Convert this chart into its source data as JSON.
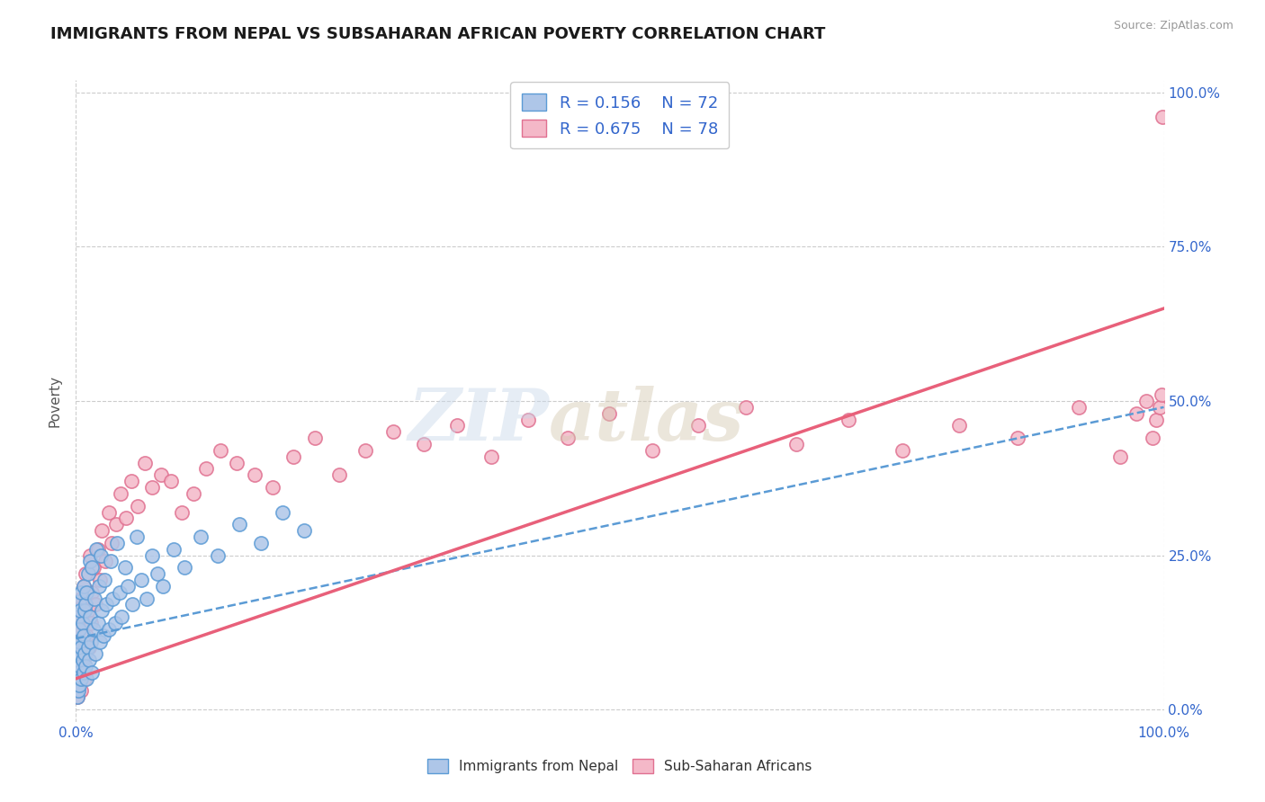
{
  "title": "IMMIGRANTS FROM NEPAL VS SUBSAHARAN AFRICAN POVERTY CORRELATION CHART",
  "source": "Source: ZipAtlas.com",
  "ylabel": "Poverty",
  "xlim": [
    0,
    1
  ],
  "ylim": [
    -0.02,
    1.02
  ],
  "ytick_values": [
    0.0,
    0.25,
    0.5,
    0.75,
    1.0
  ],
  "ytick_labels": [
    "0.0%",
    "25.0%",
    "50.0%",
    "75.0%",
    "100.0%"
  ],
  "xtick_values": [
    0.0,
    1.0
  ],
  "xtick_labels": [
    "0.0%",
    "100.0%"
  ],
  "background_color": "#ffffff",
  "grid_color": "#cccccc",
  "nepal_color": "#aec6e8",
  "nepal_edge_color": "#5b9bd5",
  "subafr_color": "#f4b8c8",
  "subafr_edge_color": "#e07090",
  "nepal_line_color": "#5b9bd5",
  "subafr_line_color": "#e8607a",
  "nepal_R": "0.156",
  "nepal_N": "72",
  "subafr_R": "0.675",
  "subafr_N": "78",
  "legend_label_nepal": "Immigrants from Nepal",
  "legend_label_subafr": "Sub-Saharan Africans",
  "nepal_scatter_x": [
    0.001,
    0.001,
    0.001,
    0.002,
    0.002,
    0.002,
    0.002,
    0.003,
    0.003,
    0.003,
    0.003,
    0.004,
    0.004,
    0.004,
    0.005,
    0.005,
    0.005,
    0.006,
    0.006,
    0.007,
    0.007,
    0.007,
    0.008,
    0.008,
    0.009,
    0.009,
    0.01,
    0.01,
    0.011,
    0.011,
    0.012,
    0.013,
    0.013,
    0.014,
    0.015,
    0.015,
    0.016,
    0.017,
    0.018,
    0.019,
    0.02,
    0.021,
    0.022,
    0.023,
    0.024,
    0.025,
    0.026,
    0.028,
    0.03,
    0.032,
    0.034,
    0.036,
    0.038,
    0.04,
    0.042,
    0.045,
    0.048,
    0.052,
    0.056,
    0.06,
    0.065,
    0.07,
    0.075,
    0.08,
    0.09,
    0.1,
    0.115,
    0.13,
    0.15,
    0.17,
    0.19,
    0.21
  ],
  "nepal_scatter_y": [
    0.02,
    0.05,
    0.08,
    0.03,
    0.06,
    0.1,
    0.15,
    0.04,
    0.09,
    0.13,
    0.175,
    0.07,
    0.11,
    0.16,
    0.05,
    0.1,
    0.19,
    0.08,
    0.14,
    0.06,
    0.12,
    0.2,
    0.09,
    0.16,
    0.07,
    0.17,
    0.05,
    0.19,
    0.1,
    0.22,
    0.08,
    0.15,
    0.24,
    0.11,
    0.06,
    0.23,
    0.13,
    0.18,
    0.09,
    0.26,
    0.14,
    0.2,
    0.11,
    0.25,
    0.16,
    0.12,
    0.21,
    0.17,
    0.13,
    0.24,
    0.18,
    0.14,
    0.27,
    0.19,
    0.15,
    0.23,
    0.2,
    0.17,
    0.28,
    0.21,
    0.18,
    0.25,
    0.22,
    0.2,
    0.26,
    0.23,
    0.28,
    0.25,
    0.3,
    0.27,
    0.32,
    0.29
  ],
  "subafr_scatter_x": [
    0.001,
    0.001,
    0.002,
    0.002,
    0.002,
    0.003,
    0.003,
    0.004,
    0.004,
    0.005,
    0.005,
    0.005,
    0.006,
    0.006,
    0.007,
    0.007,
    0.008,
    0.008,
    0.009,
    0.009,
    0.01,
    0.011,
    0.012,
    0.013,
    0.014,
    0.015,
    0.016,
    0.018,
    0.02,
    0.022,
    0.024,
    0.027,
    0.03,
    0.033,
    0.037,
    0.041,
    0.046,
    0.051,
    0.057,
    0.063,
    0.07,
    0.078,
    0.087,
    0.097,
    0.108,
    0.12,
    0.133,
    0.148,
    0.164,
    0.181,
    0.2,
    0.22,
    0.242,
    0.266,
    0.292,
    0.32,
    0.35,
    0.382,
    0.416,
    0.452,
    0.49,
    0.53,
    0.572,
    0.616,
    0.662,
    0.71,
    0.76,
    0.812,
    0.866,
    0.922,
    0.96,
    0.975,
    0.984,
    0.99,
    0.993,
    0.996,
    0.998,
    0.999
  ],
  "subafr_scatter_y": [
    0.02,
    0.06,
    0.04,
    0.09,
    0.13,
    0.05,
    0.11,
    0.07,
    0.15,
    0.03,
    0.1,
    0.18,
    0.06,
    0.14,
    0.08,
    0.2,
    0.05,
    0.17,
    0.09,
    0.22,
    0.12,
    0.16,
    0.1,
    0.25,
    0.14,
    0.19,
    0.23,
    0.17,
    0.26,
    0.21,
    0.29,
    0.24,
    0.32,
    0.27,
    0.3,
    0.35,
    0.31,
    0.37,
    0.33,
    0.4,
    0.36,
    0.38,
    0.37,
    0.32,
    0.35,
    0.39,
    0.42,
    0.4,
    0.38,
    0.36,
    0.41,
    0.44,
    0.38,
    0.42,
    0.45,
    0.43,
    0.46,
    0.41,
    0.47,
    0.44,
    0.48,
    0.42,
    0.46,
    0.49,
    0.43,
    0.47,
    0.42,
    0.46,
    0.44,
    0.49,
    0.41,
    0.48,
    0.5,
    0.44,
    0.47,
    0.49,
    0.51,
    0.96
  ],
  "nepal_line_x": [
    0.0,
    1.0
  ],
  "nepal_line_y": [
    0.115,
    0.49
  ],
  "subafr_line_x": [
    0.0,
    1.0
  ],
  "subafr_line_y": [
    0.05,
    0.65
  ]
}
